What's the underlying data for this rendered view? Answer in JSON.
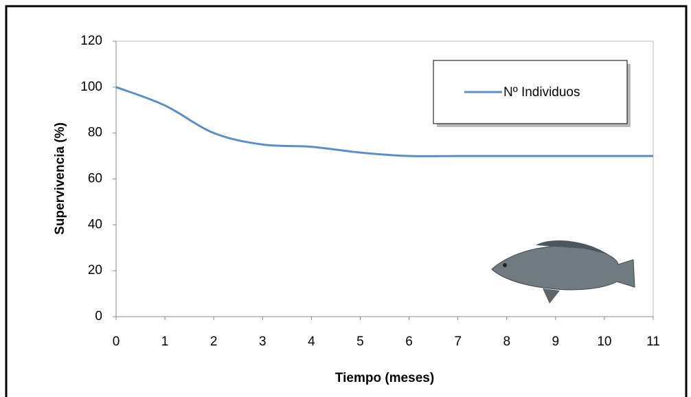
{
  "chart_data": {
    "type": "line",
    "x_label": "Tiempo (meses)",
    "y_label": "Supervivencia (%)",
    "x": [
      0,
      1,
      2,
      3,
      4,
      5,
      6,
      7,
      8,
      9,
      10,
      11
    ],
    "series": [
      {
        "name": "Nº Individuos",
        "color": "#5b8ec8",
        "values": [
          100,
          92,
          80,
          75,
          74,
          71.5,
          70,
          70,
          70,
          70,
          70,
          70
        ]
      }
    ],
    "xlim": [
      0,
      11
    ],
    "xticks": [
      0,
      1,
      2,
      3,
      4,
      5,
      6,
      7,
      8,
      9,
      10,
      11
    ],
    "ylim": [
      0,
      120
    ],
    "yticks": [
      0,
      20,
      40,
      60,
      80,
      100,
      120
    ],
    "legend": "upper right"
  }
}
